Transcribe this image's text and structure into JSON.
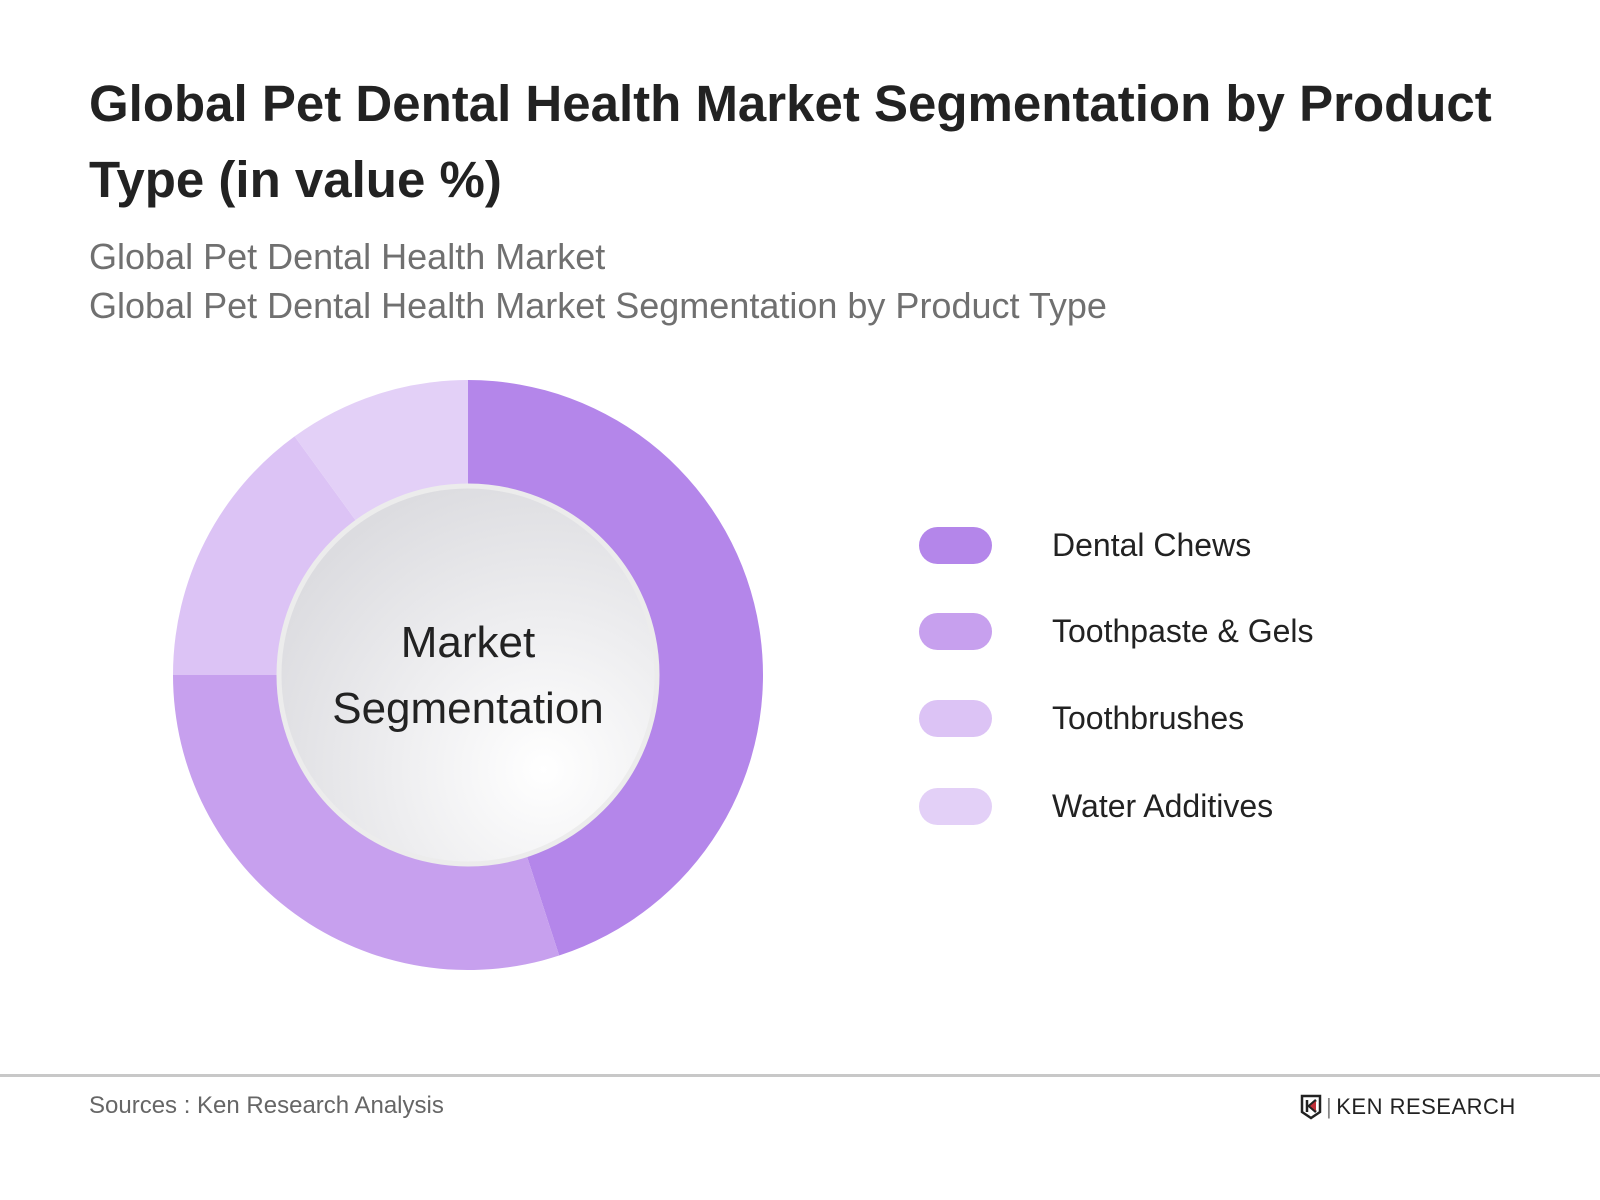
{
  "title": "Global Pet Dental Health Market Segmentation by Product Type (in value %)",
  "subtitle1": "Global Pet Dental Health Market",
  "subtitle2": "Global Pet Dental Health Market Segmentation by Product Type",
  "chart_data": {
    "type": "pie",
    "variant": "donut",
    "center_label": "Market Segmentation",
    "categories": [
      "Dental Chews",
      "Toothpaste & Gels",
      "Toothbrushes",
      "Water Additives"
    ],
    "values": [
      45,
      30,
      15,
      10
    ],
    "unit": "%",
    "colors": [
      "#b486ea",
      "#c7a0ee",
      "#dcc3f5",
      "#e3d0f7"
    ],
    "legend_position": "right"
  },
  "footer": {
    "source": "Sources : Ken Research Analysis",
    "logo_text": "KEN RESEARCH"
  }
}
